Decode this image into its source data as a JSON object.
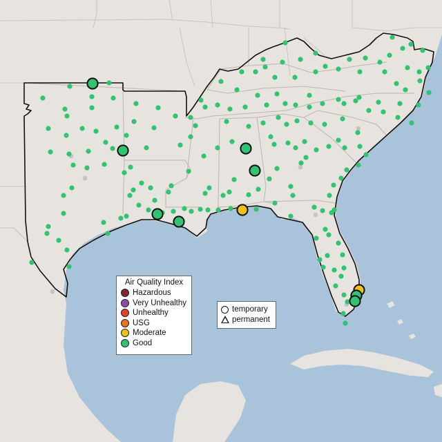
{
  "map": {
    "colors": {
      "ocean": "#a9c3da",
      "land": "#e7e3df",
      "border": "#c9c3be",
      "focus_outline": "#111111"
    }
  },
  "legend": {
    "title": "Air Quality Index",
    "categories": [
      {
        "label": "Hazardous",
        "color": "#7a2a2a"
      },
      {
        "label": "Very Unhealthy",
        "color": "#8e4aa8"
      },
      {
        "label": "Unhealthy",
        "color": "#e0442a"
      },
      {
        "label": "USG",
        "color": "#e8731c"
      },
      {
        "label": "Moderate",
        "color": "#f2c01a"
      },
      {
        "label": "Good",
        "color": "#32c372"
      }
    ]
  },
  "monitor_types": {
    "temporary_label": "temporary",
    "permanent_label": "permanent"
  }
}
